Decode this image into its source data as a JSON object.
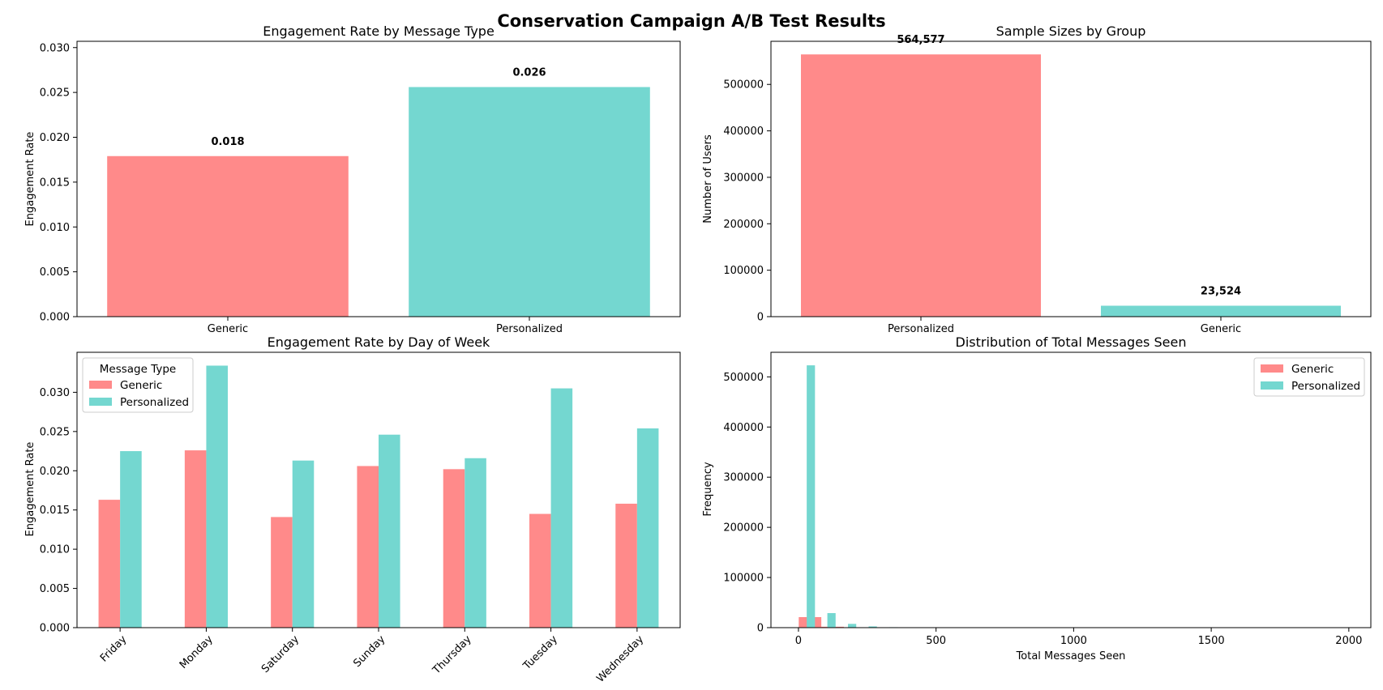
{
  "figure": {
    "title": "Conservation Campaign A/B Test Results",
    "colors": {
      "generic": "#FF8A8A",
      "personalized": "#74D7D0",
      "axis": "#000000"
    }
  },
  "chart_data": [
    {
      "type": "bar",
      "title": "Engagement Rate by Message Type",
      "xlabel": "",
      "ylabel": "Engagement Rate",
      "categories": [
        "Generic",
        "Personalized"
      ],
      "values": [
        0.0179,
        0.0256
      ],
      "data_labels": [
        "0.018",
        "0.026"
      ],
      "colors": [
        "#FF8A8A",
        "#74D7D0"
      ],
      "ylim": [
        0,
        0.0307
      ],
      "yticks": [
        0,
        0.005,
        0.01,
        0.015,
        0.02,
        0.025,
        0.03
      ],
      "ytick_labels": [
        "0.000",
        "0.005",
        "0.010",
        "0.015",
        "0.020",
        "0.025",
        "0.030"
      ]
    },
    {
      "type": "bar",
      "title": "Sample Sizes by Group",
      "xlabel": "",
      "ylabel": "Number of Users",
      "categories": [
        "Personalized",
        "Generic"
      ],
      "values": [
        564577,
        23524
      ],
      "data_labels": [
        "564,577",
        "23,524"
      ],
      "colors": [
        "#FF8A8A",
        "#74D7D0"
      ],
      "ylim": [
        0,
        592806
      ],
      "yticks": [
        0,
        100000,
        200000,
        300000,
        400000,
        500000
      ],
      "ytick_labels": [
        "0",
        "100000",
        "200000",
        "300000",
        "400000",
        "500000"
      ]
    },
    {
      "type": "bar",
      "title": "Engagement Rate by Day of Week",
      "xlabel": "",
      "ylabel": "Engagement Rate",
      "categories": [
        "Friday",
        "Monday",
        "Saturday",
        "Sunday",
        "Thursday",
        "Tuesday",
        "Wednesday"
      ],
      "series": [
        {
          "name": "Generic",
          "color": "#FF8A8A",
          "values": [
            0.0163,
            0.0226,
            0.0141,
            0.0206,
            0.0202,
            0.0145,
            0.0158
          ]
        },
        {
          "name": "Personalized",
          "color": "#74D7D0",
          "values": [
            0.0225,
            0.0334,
            0.0213,
            0.0246,
            0.0216,
            0.0305,
            0.0254
          ]
        }
      ],
      "ylim": [
        0,
        0.0351
      ],
      "yticks": [
        0,
        0.005,
        0.01,
        0.015,
        0.02,
        0.025,
        0.03
      ],
      "ytick_labels": [
        "0.000",
        "0.005",
        "0.010",
        "0.015",
        "0.020",
        "0.025",
        "0.030"
      ],
      "legend": {
        "title": "Message Type",
        "placement": "upper-left"
      }
    },
    {
      "type": "histogram",
      "title": "Distribution of Total Messages Seen",
      "xlabel": "Total Messages Seen",
      "ylabel": "Frequency",
      "series": [
        {
          "name": "Generic",
          "color": "#FF8A8A",
          "bins": [
            [
              1,
              83,
              21000
            ],
            [
              83,
              165,
              1800
            ],
            [
              165,
              247,
              400
            ],
            [
              247,
              329,
              120
            ]
          ]
        },
        {
          "name": "Personalized",
          "color": "#74D7D0",
          "bins": [
            [
              30,
              60,
              523000
            ],
            [
              105,
              135,
              29000
            ],
            [
              180,
              210,
              7500
            ],
            [
              255,
              285,
              2500
            ],
            [
              330,
              360,
              900
            ],
            [
              405,
              435,
              300
            ]
          ]
        }
      ],
      "xlim": [
        -100,
        2080
      ],
      "ylim": [
        0,
        549000
      ],
      "xticks": [
        0,
        500,
        1000,
        1500,
        2000
      ],
      "xtick_labels": [
        "0",
        "500",
        "1000",
        "1500",
        "2000"
      ],
      "yticks": [
        0,
        100000,
        200000,
        300000,
        400000,
        500000
      ],
      "ytick_labels": [
        "0",
        "100000",
        "200000",
        "300000",
        "400000",
        "500000"
      ],
      "legend": {
        "placement": "upper-right"
      }
    }
  ]
}
